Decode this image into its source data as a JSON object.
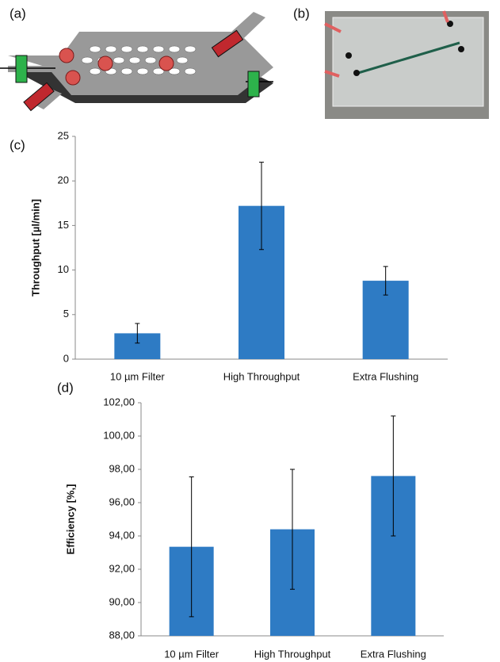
{
  "panel_labels": [
    "(a)",
    "(b)",
    "(c)",
    "(d)"
  ],
  "chart_data": [
    {
      "type": "bar",
      "ylabel": "Throughput [µl/min]",
      "categories": [
        "10 µm Filter",
        "High Throughput",
        "Extra Flushing"
      ],
      "values": [
        2.9,
        17.2,
        8.8
      ],
      "errors": [
        1.1,
        4.9,
        1.6
      ],
      "color": "#2e7bc4",
      "ylim": [
        0,
        25
      ],
      "yticks": [
        0,
        5,
        10,
        15,
        20,
        25
      ],
      "grid": false
    },
    {
      "type": "bar",
      "ylabel": "Efficiency [%,]",
      "categories": [
        "10 µm Filter",
        "High Throughput",
        "Extra Flushing"
      ],
      "values": [
        93.35,
        94.4,
        97.6
      ],
      "errors": [
        4.2,
        3.6,
        3.6
      ],
      "color": "#2e7bc4",
      "ylim": [
        88,
        102
      ],
      "yticks": [
        {
          "value": 88,
          "label": "88,00"
        },
        {
          "value": 90,
          "label": "90,00"
        },
        {
          "value": 92,
          "label": "92,00"
        },
        {
          "value": 94,
          "label": "94,00"
        },
        {
          "value": 96,
          "label": "96,00"
        },
        {
          "value": 98,
          "label": "98,00"
        },
        {
          "value": 100,
          "label": "100,00"
        },
        {
          "value": 102,
          "label": "102,00"
        }
      ],
      "grid": false
    }
  ]
}
